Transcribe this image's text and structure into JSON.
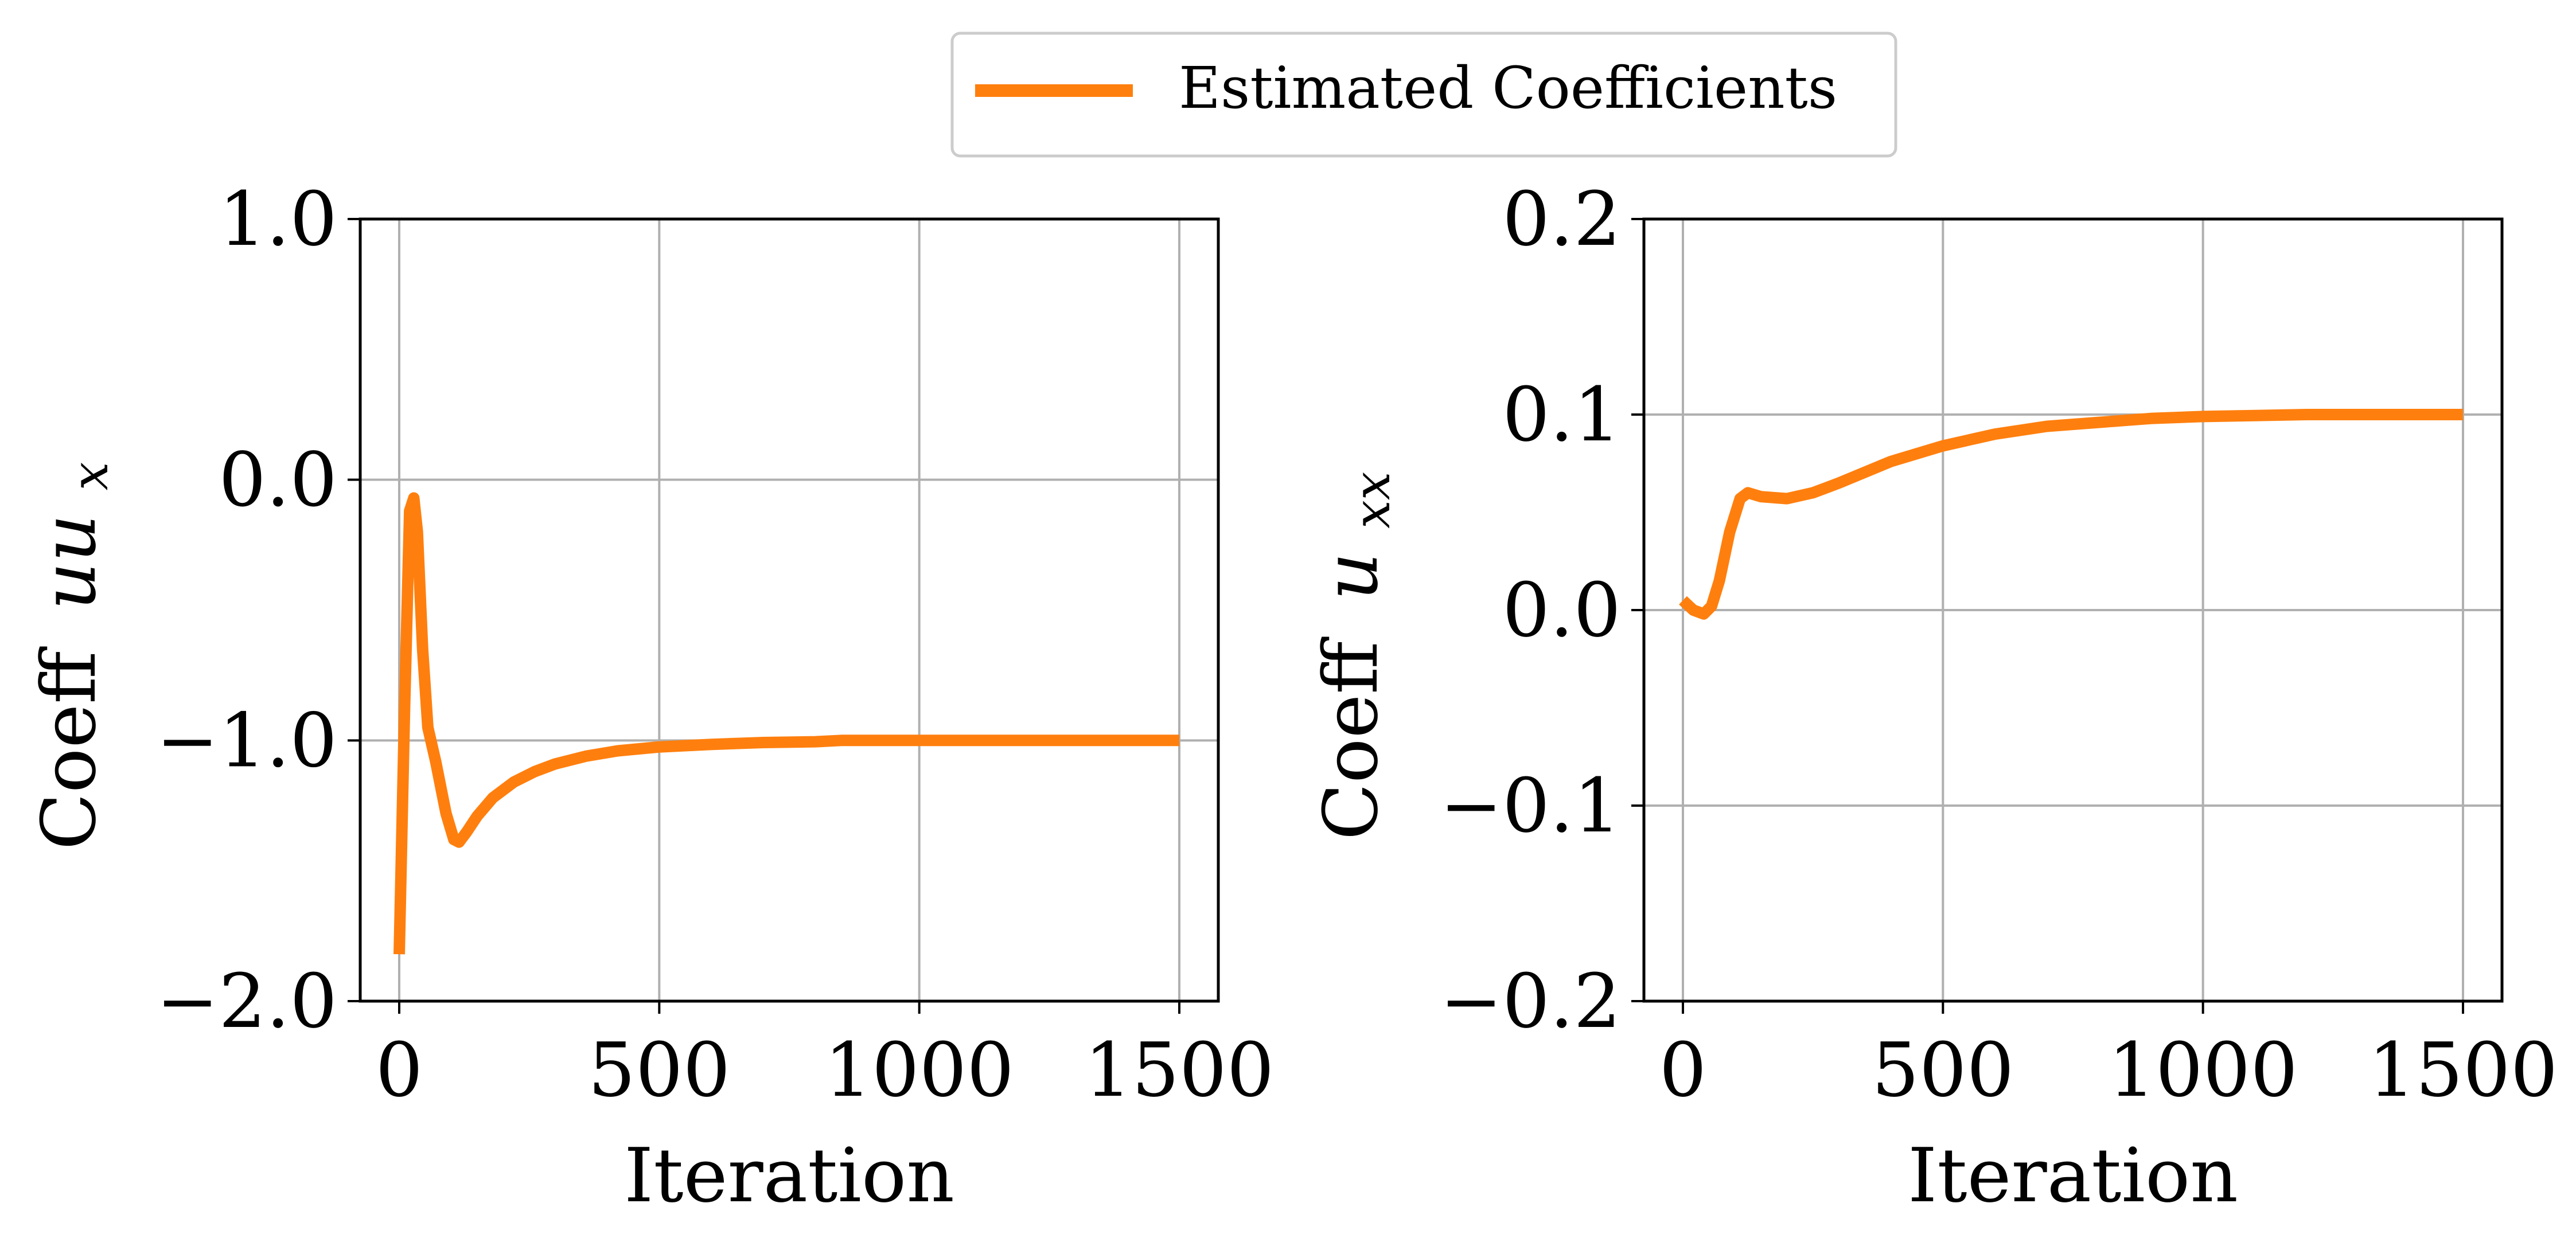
{
  "legend": {
    "label": "Estimated Coefficients",
    "placement": "upper-center",
    "line_color": "#ff7f0e"
  },
  "chart_data": [
    {
      "type": "line",
      "title": "",
      "xlabel": "Iteration",
      "ylabel": "Coeff uu_x",
      "ylabel_prefix": "Coeff",
      "ylabel_main": "uu",
      "ylabel_sub": "x",
      "xlim": [
        -75,
        1575
      ],
      "ylim": [
        -2.0,
        1.0
      ],
      "xticks": [
        0,
        500,
        1000,
        1500
      ],
      "xtick_labels": [
        "0",
        "500",
        "1000",
        "1500"
      ],
      "yticks": [
        -2.0,
        -1.0,
        0.0,
        1.0
      ],
      "ytick_labels": [
        "−2.0",
        "−1.0",
        "0.0",
        "1.0"
      ],
      "grid": true,
      "series": [
        {
          "name": "Estimated Coefficients",
          "color": "#ff7f0e",
          "x": [
            0,
            10,
            20,
            28,
            35,
            45,
            55,
            70,
            90,
            105,
            115,
            130,
            150,
            180,
            220,
            260,
            300,
            360,
            420,
            500,
            600,
            700,
            800,
            850,
            860,
            900,
            1000,
            1200,
            1500
          ],
          "y": [
            -1.82,
            -0.9,
            -0.12,
            -0.07,
            -0.2,
            -0.65,
            -0.95,
            -1.08,
            -1.28,
            -1.38,
            -1.39,
            -1.35,
            -1.29,
            -1.22,
            -1.16,
            -1.12,
            -1.09,
            -1.06,
            -1.04,
            -1.025,
            -1.015,
            -1.008,
            -1.005,
            -1.0,
            -1.0,
            -1.0,
            -1.0,
            -1.0,
            -1.0
          ]
        }
      ]
    },
    {
      "type": "line",
      "title": "",
      "xlabel": "Iteration",
      "ylabel": "Coeff u_xx",
      "ylabel_prefix": "Coeff",
      "ylabel_main": "u",
      "ylabel_sub": "xx",
      "xlim": [
        -75,
        1575
      ],
      "ylim": [
        -0.2,
        0.2
      ],
      "xticks": [
        0,
        500,
        1000,
        1500
      ],
      "xtick_labels": [
        "0",
        "500",
        "1000",
        "1500"
      ],
      "yticks": [
        -0.2,
        -0.1,
        0.0,
        0.1,
        0.2
      ],
      "ytick_labels": [
        "−0.2",
        "−0.1",
        "0.0",
        "0.1",
        "0.2"
      ],
      "grid": true,
      "series": [
        {
          "name": "Estimated Coefficients",
          "color": "#ff7f0e",
          "x": [
            0,
            20,
            40,
            55,
            70,
            90,
            110,
            125,
            150,
            200,
            250,
            300,
            400,
            500,
            600,
            700,
            800,
            850,
            900,
            1000,
            1200,
            1500
          ],
          "y": [
            0.005,
            0.0,
            -0.002,
            0.002,
            0.015,
            0.04,
            0.057,
            0.06,
            0.058,
            0.057,
            0.06,
            0.065,
            0.076,
            0.084,
            0.09,
            0.094,
            0.096,
            0.097,
            0.098,
            0.099,
            0.1,
            0.1
          ]
        }
      ]
    }
  ]
}
